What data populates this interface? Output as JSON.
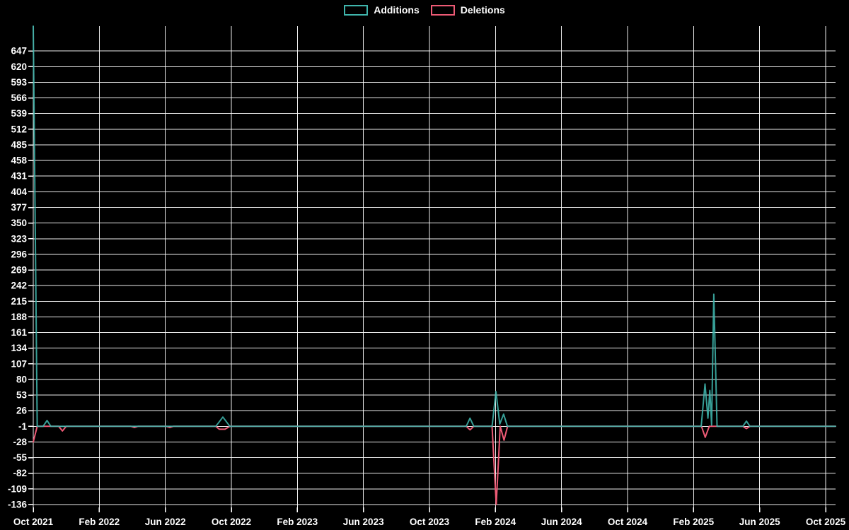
{
  "style": {
    "background": "#000000",
    "grid_color": "#ffffff",
    "text_color": "#ffffff",
    "additions_color": "#3fb5ac",
    "deletions_color": "#ed5a75"
  },
  "legend": {
    "items": [
      {
        "label": "Additions",
        "color": "#3fb5ac"
      },
      {
        "label": "Deletions",
        "color": "#ed5a75"
      }
    ]
  },
  "chart_data": {
    "type": "line",
    "title": "",
    "legend_position": "top-center",
    "grid": true,
    "x_axis": {
      "tick_labels": [
        "Oct 2021",
        "Feb 2022",
        "Jun 2022",
        "Oct 2022",
        "Feb 2023",
        "Jun 2023",
        "Oct 2023",
        "Feb 2024",
        "Jun 2024",
        "Oct 2024",
        "Feb 2025",
        "Jun 2025",
        "Oct 2025"
      ]
    },
    "y_axis": {
      "min": -136,
      "max": 647,
      "step": 27,
      "ticks": [
        -136,
        -109,
        -82,
        -55,
        -28,
        -1,
        26,
        53,
        80,
        107,
        134,
        161,
        188,
        215,
        242,
        269,
        296,
        323,
        350,
        377,
        404,
        431,
        458,
        485,
        512,
        539,
        566,
        593,
        620,
        647
      ]
    },
    "baseline_value": -1,
    "series": [
      {
        "name": "Additions",
        "color": "#3fb5ac",
        "points": [
          {
            "x": 0.0,
            "y": 690
          },
          {
            "x": 0.0049,
            "y": -1
          },
          {
            "x": 0.0123,
            "y": -1
          },
          {
            "x": 0.0172,
            "y": 9
          },
          {
            "x": 0.022,
            "y": -1
          },
          {
            "x": 0.1217,
            "y": -1
          },
          {
            "x": 0.2275,
            "y": -1
          },
          {
            "x": 0.2363,
            "y": 15
          },
          {
            "x": 0.2451,
            "y": -1
          },
          {
            "x": 0.5397,
            "y": -1
          },
          {
            "x": 0.5444,
            "y": 13
          },
          {
            "x": 0.5491,
            "y": -1
          },
          {
            "x": 0.5719,
            "y": -1
          },
          {
            "x": 0.5767,
            "y": 59
          },
          {
            "x": 0.5815,
            "y": 3
          },
          {
            "x": 0.5862,
            "y": 20
          },
          {
            "x": 0.591,
            "y": -1
          },
          {
            "x": 0.8325,
            "y": -1
          },
          {
            "x": 0.8373,
            "y": 72
          },
          {
            "x": 0.8409,
            "y": 13
          },
          {
            "x": 0.8433,
            "y": 61
          },
          {
            "x": 0.8455,
            "y": 1
          },
          {
            "x": 0.8482,
            "y": 227
          },
          {
            "x": 0.8523,
            "y": -1
          },
          {
            "x": 0.8845,
            "y": -1
          },
          {
            "x": 0.8889,
            "y": 8
          },
          {
            "x": 0.8933,
            "y": -1
          },
          {
            "x": 1.0,
            "y": -1
          }
        ]
      },
      {
        "name": "Deletions",
        "color": "#ed5a75",
        "points": [
          {
            "x": 0.0,
            "y": -28
          },
          {
            "x": 0.0049,
            "y": -1
          },
          {
            "x": 0.0317,
            "y": -1
          },
          {
            "x": 0.0364,
            "y": -9
          },
          {
            "x": 0.0411,
            "y": -1
          },
          {
            "x": 0.1217,
            "y": -1
          },
          {
            "x": 0.1261,
            "y": -3
          },
          {
            "x": 0.1305,
            "y": -1
          },
          {
            "x": 0.1658,
            "y": -1
          },
          {
            "x": 0.1702,
            "y": -3
          },
          {
            "x": 0.1746,
            "y": -1
          },
          {
            "x": 0.2275,
            "y": -1
          },
          {
            "x": 0.2319,
            "y": -6
          },
          {
            "x": 0.239,
            "y": -6
          },
          {
            "x": 0.2451,
            "y": -1
          },
          {
            "x": 0.5397,
            "y": -1
          },
          {
            "x": 0.5444,
            "y": -7
          },
          {
            "x": 0.5491,
            "y": -1
          },
          {
            "x": 0.5719,
            "y": -1
          },
          {
            "x": 0.5771,
            "y": -136
          },
          {
            "x": 0.582,
            "y": -1
          },
          {
            "x": 0.5868,
            "y": -25
          },
          {
            "x": 0.5912,
            "y": -1
          },
          {
            "x": 0.8329,
            "y": -1
          },
          {
            "x": 0.8376,
            "y": -20
          },
          {
            "x": 0.8426,
            "y": -1
          },
          {
            "x": 0.8845,
            "y": -1
          },
          {
            "x": 0.8889,
            "y": -5
          },
          {
            "x": 0.8933,
            "y": -1
          },
          {
            "x": 1.0,
            "y": -1
          }
        ]
      }
    ]
  }
}
